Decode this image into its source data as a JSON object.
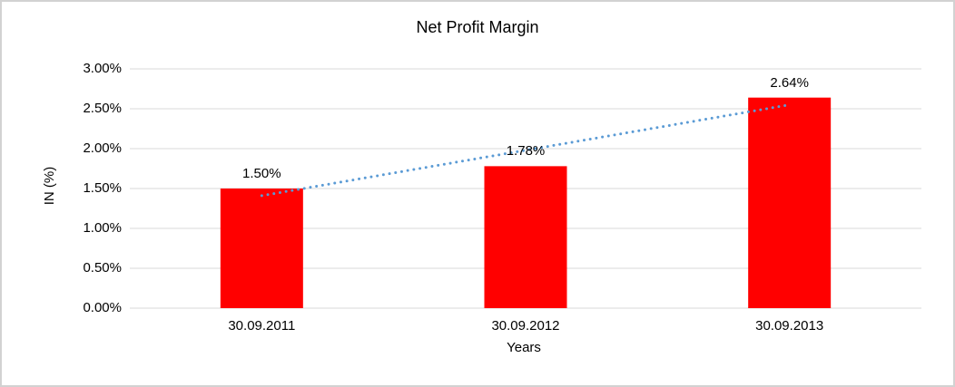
{
  "window": {
    "background_color": "#FFFFFF",
    "border_color": "#D2D2D2"
  },
  "chart_data": {
    "type": "bar",
    "title": "Net Profit Margin",
    "xlabel": "Years",
    "ylabel": "IN (%)",
    "categories": [
      "30.09.2011",
      "30.09.2012",
      "30.09.2013"
    ],
    "values": [
      1.5,
      1.78,
      2.64
    ],
    "data_labels": [
      "1.50%",
      "1.78%",
      "2.64%"
    ],
    "yticks": [
      {
        "value": 0.0,
        "label": "0.00%"
      },
      {
        "value": 0.5,
        "label": "0.50%"
      },
      {
        "value": 1.0,
        "label": "1.00%"
      },
      {
        "value": 1.5,
        "label": "1.50%"
      },
      {
        "value": 2.0,
        "label": "2.00%"
      },
      {
        "value": 2.5,
        "label": "2.50%"
      },
      {
        "value": 3.0,
        "label": "3.00%"
      }
    ],
    "ylim": [
      0.0,
      3.0
    ],
    "grid": true,
    "legend": "none",
    "bar_color": "#FF0000",
    "gridline_color": "#D9D9D9",
    "text_color": "#000000",
    "trendline": {
      "style": "dotted",
      "color": "#5B9BD5",
      "start_value": 1.41,
      "end_value": 2.55
    }
  }
}
